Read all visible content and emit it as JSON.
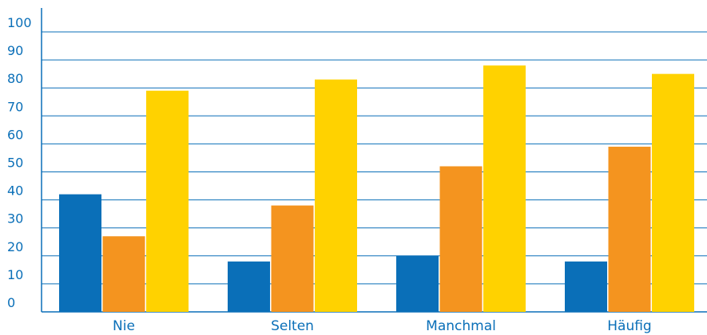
{
  "chart_data": {
    "type": "bar",
    "categories": [
      "Nie",
      "Selten",
      "Manchmal",
      "Häufig"
    ],
    "series": [
      {
        "values": [
          42,
          18,
          20,
          18
        ],
        "color": "#0a6fb8"
      },
      {
        "values": [
          27,
          38,
          52,
          59
        ],
        "color": "#f4941f"
      },
      {
        "values": [
          79,
          83,
          88,
          85
        ],
        "color": "#ffd200"
      }
    ],
    "yticks": [
      0,
      10,
      20,
      30,
      40,
      50,
      60,
      70,
      80,
      90,
      100
    ],
    "ylim": [
      0,
      100
    ],
    "grid": true,
    "title": "",
    "xlabel": "",
    "ylabel": "",
    "colors": {
      "axis": "#0a6fb8",
      "text": "#0a6fb8"
    }
  }
}
